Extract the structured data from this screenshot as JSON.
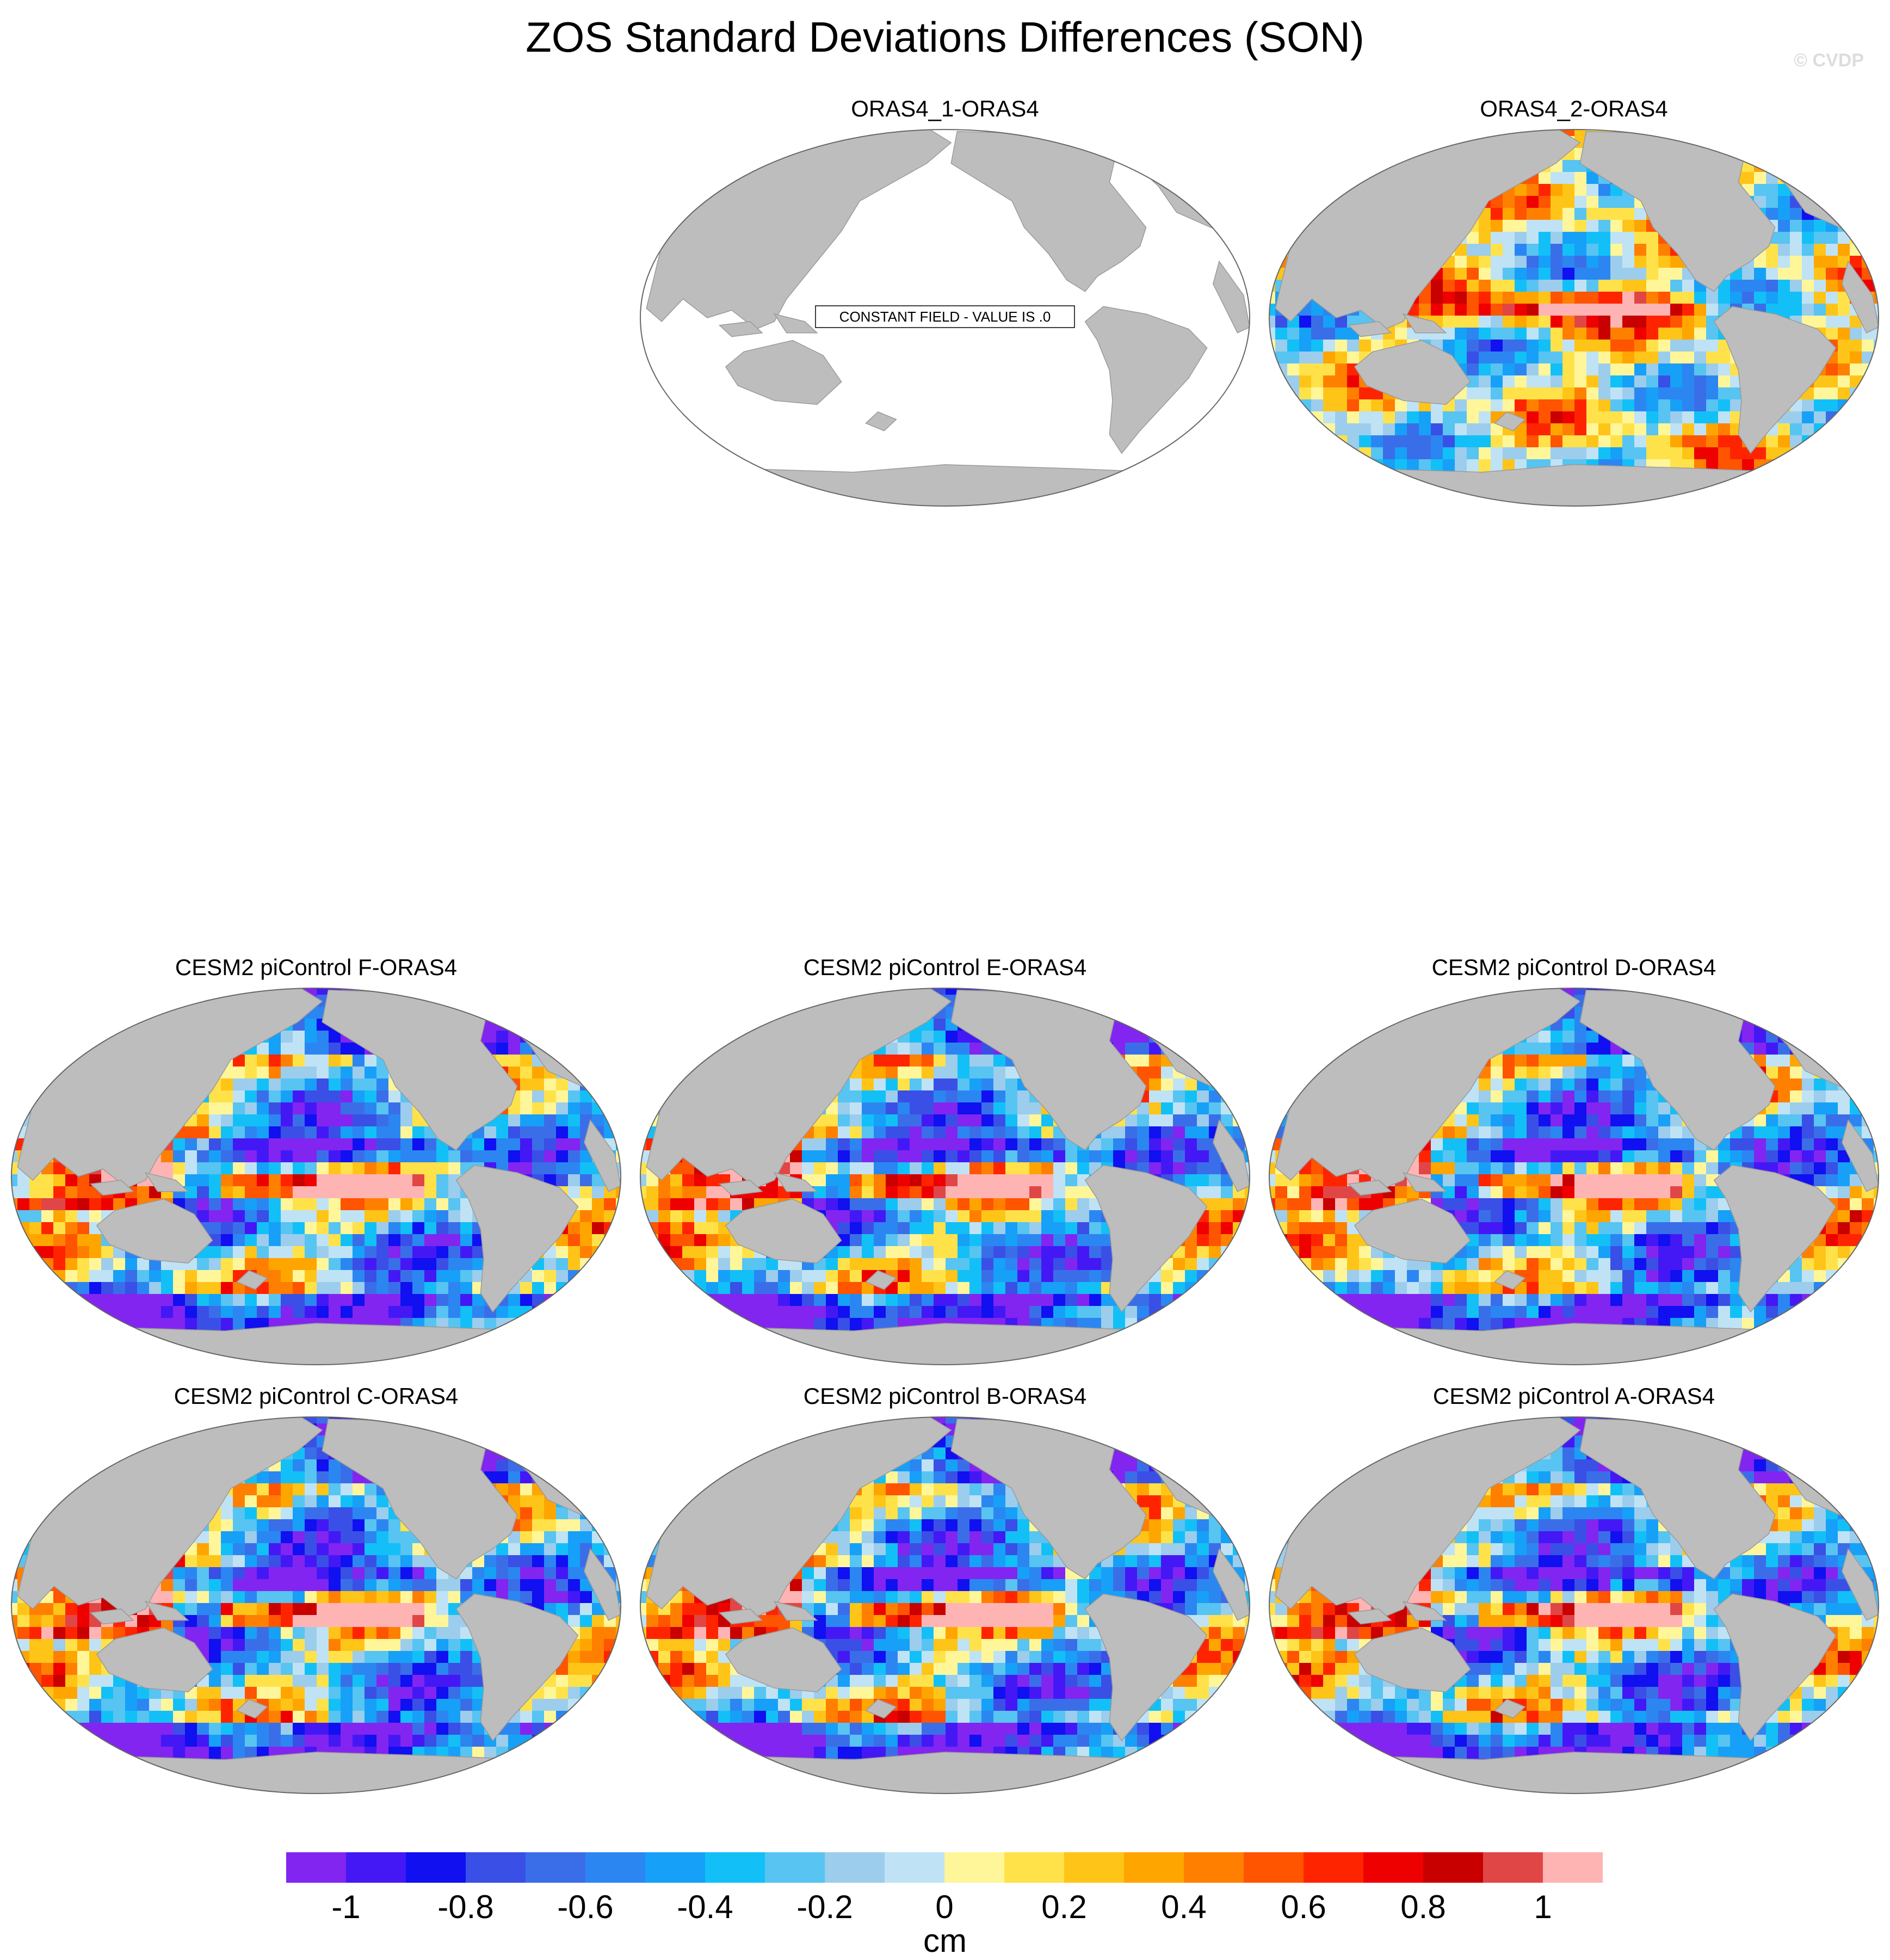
{
  "title": "ZOS Standard Deviations Differences (SON)",
  "credit": "© CVDP",
  "colors": {
    "land": "#bdbdbd",
    "ocean_missing": "#ffffff",
    "outline": "#666666"
  },
  "panels": [
    {
      "id": "oras4-1",
      "title": "ORAS4_1-ORAS4",
      "constant_field": true,
      "note": "CONSTANT FIELD - VALUE IS .0"
    },
    {
      "id": "oras4-2",
      "title": "ORAS4_2-ORAS4",
      "constant_field": false,
      "pattern": "oras"
    },
    {
      "id": "cesm-f",
      "title": "CESM2 piControl F-ORAS4",
      "constant_field": false,
      "pattern": "cesm"
    },
    {
      "id": "cesm-e",
      "title": "CESM2 piControl E-ORAS4",
      "constant_field": false,
      "pattern": "cesm"
    },
    {
      "id": "cesm-d",
      "title": "CESM2 piControl D-ORAS4",
      "constant_field": false,
      "pattern": "cesm"
    },
    {
      "id": "cesm-c",
      "title": "CESM2 piControl C-ORAS4",
      "constant_field": false,
      "pattern": "cesm"
    },
    {
      "id": "cesm-b",
      "title": "CESM2 piControl B-ORAS4",
      "constant_field": false,
      "pattern": "cesm"
    },
    {
      "id": "cesm-a",
      "title": "CESM2 piControl A-ORAS4",
      "constant_field": false,
      "pattern": "cesm"
    }
  ],
  "colorbar": {
    "unit": "cm",
    "colors": [
      "#8225f0",
      "#4418f5",
      "#1010f0",
      "#3a4fe6",
      "#3a6ee8",
      "#2b86f2",
      "#17a0f7",
      "#12c0f7",
      "#57c4f2",
      "#9ccdec",
      "#bfe3f5",
      "#fff69a",
      "#ffe24a",
      "#ffc418",
      "#ffa500",
      "#ff8000",
      "#ff5400",
      "#ff2400",
      "#ef0000",
      "#c90000",
      "#e04646",
      "#ffb4b4"
    ],
    "tick_labels": [
      "-1",
      "-0.8",
      "-0.6",
      "-0.4",
      "-0.2",
      "0",
      "0.2",
      "0.4",
      "0.6",
      "0.8",
      "1"
    ]
  }
}
